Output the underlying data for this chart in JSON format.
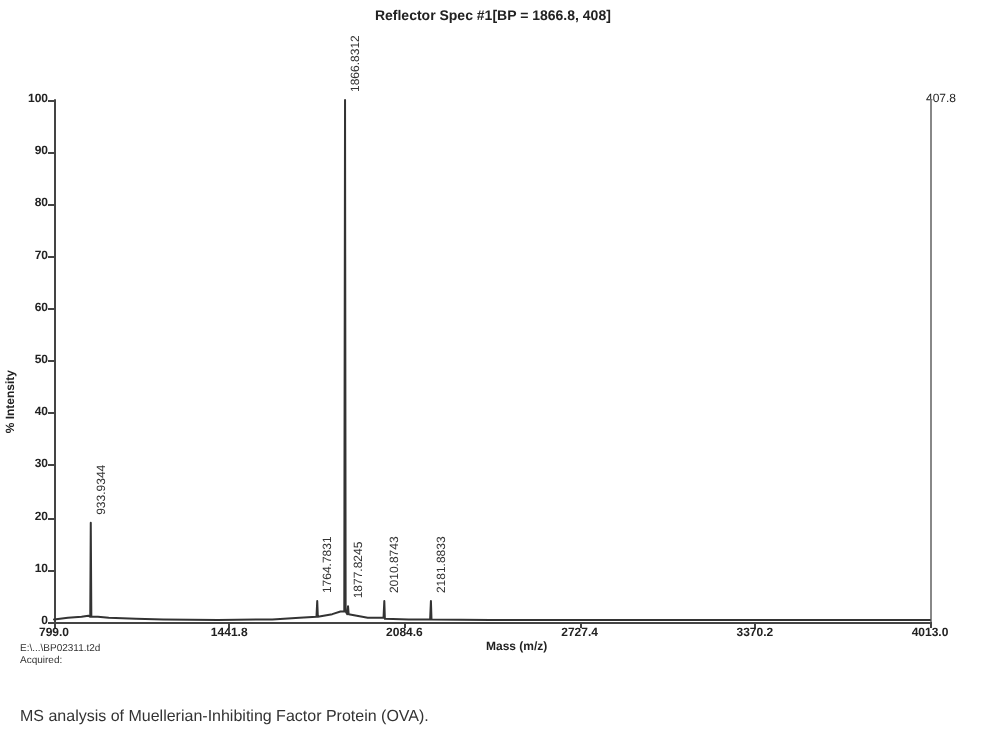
{
  "chart_data": {
    "type": "line",
    "title": "Reflector Spec #1[BP = 1866.8, 408]",
    "xlabel": "Mass (m/z)",
    "ylabel": "% Intensity",
    "x": [
      799,
      850,
      900,
      925,
      932,
      933.9,
      936,
      960,
      1000,
      1100,
      1200,
      1400,
      1600,
      1700,
      1762,
      1764.8,
      1767,
      1820,
      1850,
      1864,
      1866.8,
      1869,
      1875,
      1877.8,
      1880,
      1950,
      2008,
      2010.9,
      2013,
      2100,
      2179,
      2181.9,
      2184,
      2400,
      2800,
      3200,
      3600,
      4013
    ],
    "series": [
      {
        "color": "#333333",
        "values": [
          0.5,
          0.8,
          1,
          1.2,
          1,
          19,
          1,
          1,
          0.8,
          0.6,
          0.5,
          0.4,
          0.5,
          0.8,
          1,
          4,
          1,
          1.5,
          2,
          2,
          100,
          2,
          1.5,
          3,
          1.5,
          0.8,
          0.8,
          4,
          0.6,
          0.5,
          0.5,
          4,
          0.5,
          0.4,
          0.4,
          0.4,
          0.4,
          0.4
        ]
      }
    ],
    "xlim": [
      799,
      4013
    ],
    "xticks": [
      {
        "value": 799,
        "label": "799.0"
      },
      {
        "value": 1441.8,
        "label": "1441.8"
      },
      {
        "value": 2084.6,
        "label": "2084.6"
      },
      {
        "value": 2727.4,
        "label": "2727.4"
      },
      {
        "value": 3370.2,
        "label": "3370.2"
      },
      {
        "value": 4013,
        "label": "4013.0"
      }
    ],
    "ylim": [
      0,
      100
    ],
    "yticks": [
      0,
      10,
      20,
      30,
      40,
      50,
      60,
      70,
      80,
      90,
      100
    ],
    "grid": false,
    "marker": "none",
    "line_style": "solid",
    "annotations": [
      {
        "text": "933.9344",
        "x": 933.9,
        "y": 19
      },
      {
        "text": "1764.7831",
        "x": 1764.8,
        "y": 4
      },
      {
        "text": "1866.8312",
        "x": 1866.8,
        "y": 100
      },
      {
        "text": "1877.8245",
        "x": 1877.8,
        "y": 3
      },
      {
        "text": "2010.8743",
        "x": 2010.9,
        "y": 4
      },
      {
        "text": "2181.8833",
        "x": 2181.9,
        "y": 4
      },
      "407.8",
      "E:\\...\\BP02311.t2d",
      "Acquired:",
      "MS analysis of Muellerian-Inhibiting Factor Protein (OVA)."
    ]
  }
}
